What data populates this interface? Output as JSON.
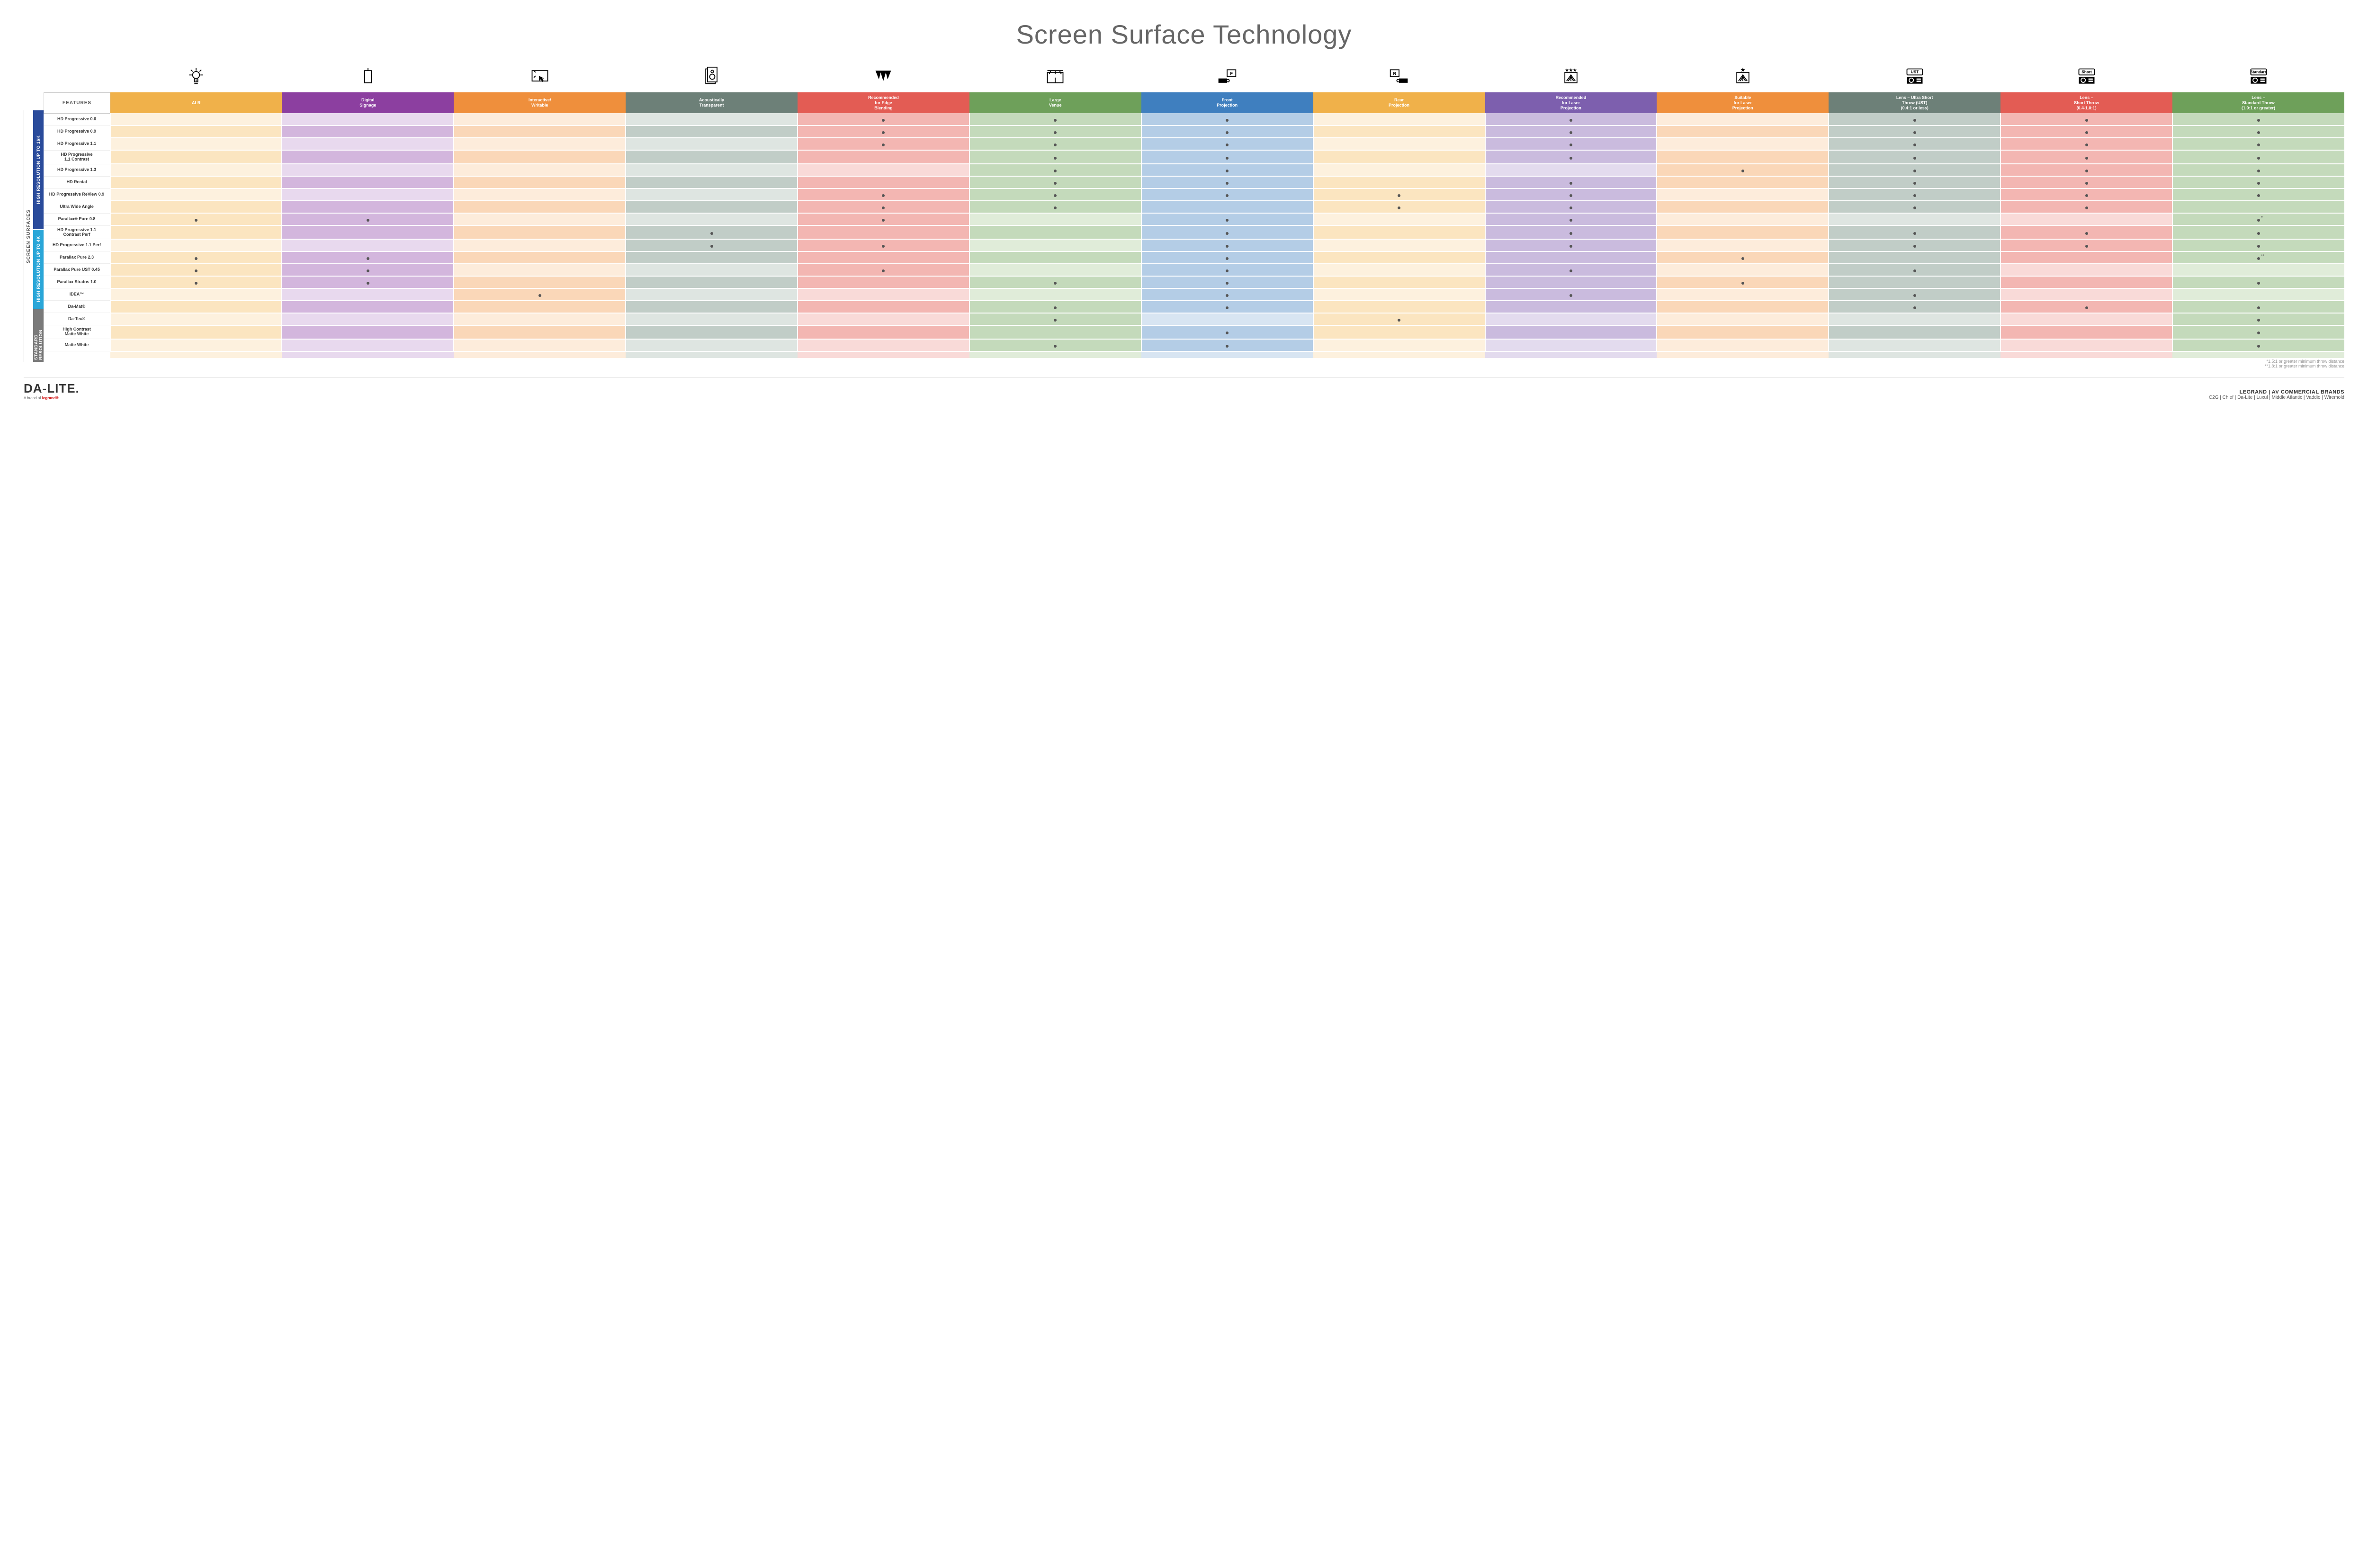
{
  "title": "Screen Surface Technology",
  "features_label": "FEATURES",
  "side_outer_label": "SCREEN SURFACES",
  "columns": [
    {
      "key": "alr",
      "label": "ALR",
      "color": "#f0b14a",
      "light": "#fbe5c0",
      "lighter": "#fdf1de"
    },
    {
      "key": "signage",
      "label": "Digital\nSignage",
      "color": "#8c3fa0",
      "light": "#d3b6dd",
      "lighter": "#e8d9ee"
    },
    {
      "key": "interactive",
      "label": "Interactive/\nWritable",
      "color": "#ef8f3c",
      "light": "#fad7b8",
      "lighter": "#fdecdb"
    },
    {
      "key": "acoustic",
      "label": "Acoustically\nTransparent",
      "color": "#6d8078",
      "light": "#c1cdc7",
      "lighter": "#dee5e1"
    },
    {
      "key": "edge",
      "label": "Recommended\nfor Edge\nBlending",
      "color": "#e35c54",
      "light": "#f3b6b2",
      "lighter": "#f9dad8"
    },
    {
      "key": "large",
      "label": "Large\nVenue",
      "color": "#6ea05a",
      "light": "#c4dabb",
      "lighter": "#e0ecd9"
    },
    {
      "key": "front",
      "label": "Front\nProjection",
      "color": "#3f7fbf",
      "light": "#b4cde6",
      "lighter": "#d8e5f2"
    },
    {
      "key": "rear",
      "label": "Rear\nProjection",
      "color": "#f0b14a",
      "light": "#fbe5c0",
      "lighter": "#fdf1de"
    },
    {
      "key": "reclaser",
      "label": "Recommended\nfor Laser\nProjection",
      "color": "#7d5fae",
      "light": "#cabbde",
      "lighter": "#e3dbee"
    },
    {
      "key": "suitlaser",
      "label": "Suitable\nfor Laser\nProjection",
      "color": "#ef8f3c",
      "light": "#fad7b8",
      "lighter": "#fdecdb"
    },
    {
      "key": "ust",
      "label": "Lens – Ultra Short\nThrow (UST)\n(0.4:1 or less)",
      "color": "#6d8078",
      "light": "#c1cdc7",
      "lighter": "#dee5e1"
    },
    {
      "key": "short",
      "label": "Lens –\nShort Throw\n(0.4-1.0:1)",
      "color": "#e35c54",
      "light": "#f3b6b2",
      "lighter": "#f9dad8"
    },
    {
      "key": "std",
      "label": "Lens –\nStandard Throw\n(1.0:1 or greater)",
      "color": "#6ea05a",
      "light": "#c4dabb",
      "lighter": "#e0ecd9"
    }
  ],
  "icon_labels": {
    "ust": "UST",
    "short": "Short",
    "std": "Standard"
  },
  "groups": [
    {
      "label": "HIGH RESOLUTION UP TO 16K",
      "color": "#2a4b9b",
      "rows": [
        {
          "label": "HD Progressive 0.6",
          "dots": [
            "edge",
            "large",
            "front",
            "reclaser",
            "ust",
            "short",
            "std"
          ]
        },
        {
          "label": "HD Progressive 0.9",
          "dots": [
            "edge",
            "large",
            "front",
            "reclaser",
            "ust",
            "short",
            "std"
          ]
        },
        {
          "label": "HD Progressive 1.1",
          "dots": [
            "edge",
            "large",
            "front",
            "reclaser",
            "ust",
            "short",
            "std"
          ]
        },
        {
          "label": "HD Progressive\n1.1 Contrast",
          "dots": [
            "large",
            "front",
            "reclaser",
            "ust",
            "short",
            "std"
          ]
        },
        {
          "label": "HD Progressive 1.3",
          "dots": [
            "large",
            "front",
            "suitlaser",
            "ust",
            "short",
            "std"
          ]
        },
        {
          "label": "HD Rental",
          "dots": [
            "large",
            "front",
            "reclaser",
            "ust",
            "short",
            "std"
          ]
        },
        {
          "label": "HD Progressive ReView 0.9",
          "dots": [
            "edge",
            "large",
            "front",
            "rear",
            "reclaser",
            "ust",
            "short",
            "std"
          ]
        },
        {
          "label": "Ultra Wide Angle",
          "dots": [
            "edge",
            "large",
            "rear",
            "reclaser",
            "ust",
            "short"
          ]
        },
        {
          "label": "Parallax® Pure 0.8",
          "dots": [
            "alr",
            "signage",
            "edge",
            "front",
            "reclaser",
            "std"
          ],
          "note": "*"
        }
      ]
    },
    {
      "label": "HIGH RESOLUTION UP TO 4K",
      "color": "#2aa6d8",
      "rows": [
        {
          "label": "HD Progressive 1.1\nContrast Perf",
          "dots": [
            "acoustic",
            "front",
            "reclaser",
            "ust",
            "short",
            "std"
          ]
        },
        {
          "label": "HD Progressive 1.1 Perf",
          "dots": [
            "acoustic",
            "edge",
            "front",
            "reclaser",
            "ust",
            "short",
            "std"
          ]
        },
        {
          "label": "Parallax Pure 2.3",
          "dots": [
            "alr",
            "signage",
            "front",
            "suitlaser",
            "std"
          ],
          "note": "**"
        },
        {
          "label": "Parallax Pure UST 0.45",
          "dots": [
            "alr",
            "signage",
            "edge",
            "front",
            "reclaser",
            "ust"
          ]
        },
        {
          "label": "Parallax Stratos 1.0",
          "dots": [
            "alr",
            "signage",
            "large",
            "front",
            "suitlaser",
            "std"
          ]
        },
        {
          "label": "IDEA™",
          "dots": [
            "interactive",
            "front",
            "reclaser",
            "ust"
          ]
        }
      ]
    },
    {
      "label": "STANDARD\nRESOLUTION",
      "color": "#7a7a7a",
      "rows": [
        {
          "label": "Da-Mat®",
          "dots": [
            "large",
            "front",
            "ust",
            "short",
            "std"
          ]
        },
        {
          "label": "Da-Tex®",
          "dots": [
            "large",
            "rear",
            "std"
          ]
        },
        {
          "label": "High Contrast\nMatte White",
          "dots": [
            "front",
            "std"
          ]
        },
        {
          "label": "Matte White",
          "dots": [
            "large",
            "front",
            "std"
          ]
        }
      ]
    }
  ],
  "footnotes": [
    "*1.5:1 or greater minimum throw distance",
    "**1.8:1 or greater minimum throw distance"
  ],
  "logo": {
    "main": "DA-LITE.",
    "sub_prefix": "A brand of ",
    "sub_brand": "legrand®"
  },
  "footer": {
    "title": "LEGRAND | AV COMMERCIAL BRANDS",
    "brands": "C2G  |  Chief  |  Da-Lite  |  Luxul  |  Middle Atlantic  |  Vaddio  |  Wiremold"
  }
}
